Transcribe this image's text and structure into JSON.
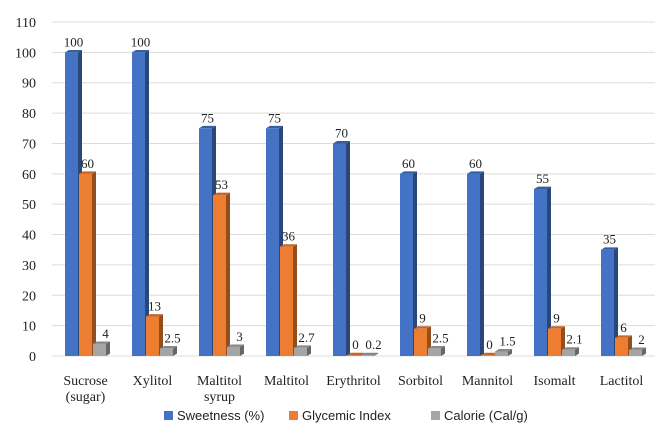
{
  "chart_data": {
    "type": "bar",
    "categories": [
      "Sucrose (sugar)",
      "Xylitol",
      "Maltitol syrup",
      "Maltitol",
      "Erythritol",
      "Sorbitol",
      "Mannitol",
      "Isomalt",
      "Lactitol"
    ],
    "category_lines": [
      [
        "Sucrose",
        "(sugar)"
      ],
      [
        "Xylitol"
      ],
      [
        "Maltitol",
        "syrup"
      ],
      [
        "Maltitol"
      ],
      [
        "Erythritol"
      ],
      [
        "Sorbitol"
      ],
      [
        "Mannitol"
      ],
      [
        "Isomalt"
      ],
      [
        "Lactitol"
      ]
    ],
    "series": [
      {
        "name": "Sweetness (%)",
        "color": "#4472C4",
        "values": [
          100,
          100,
          75,
          75,
          70,
          60,
          60,
          55,
          35
        ],
        "labels": [
          "100",
          "100",
          "75",
          "75",
          "70",
          "60",
          "60",
          "55",
          "35"
        ]
      },
      {
        "name": "Glycemic Index",
        "color": "#ED7D31",
        "values": [
          60,
          13,
          53,
          36,
          0,
          9,
          0,
          9,
          6
        ],
        "labels": [
          "60",
          "13",
          "53",
          "36",
          "0",
          "9",
          "0",
          "9",
          "6"
        ]
      },
      {
        "name": "Calorie (Cal/g)",
        "color": "#A5A5A5",
        "values": [
          4,
          2.5,
          3,
          2.7,
          0.2,
          2.5,
          1.5,
          2.1,
          2
        ],
        "labels": [
          "4",
          "2.5",
          "3",
          "2.7",
          "0.2",
          "2.5",
          "1.5",
          "2.1",
          "2"
        ]
      }
    ],
    "y_ticks": [
      "0",
      "10",
      "20",
      "30",
      "40",
      "50",
      "60",
      "70",
      "80",
      "90",
      "100",
      "110"
    ],
    "ylim": [
      0,
      110
    ],
    "grid": true,
    "legend_position": "bottom"
  }
}
